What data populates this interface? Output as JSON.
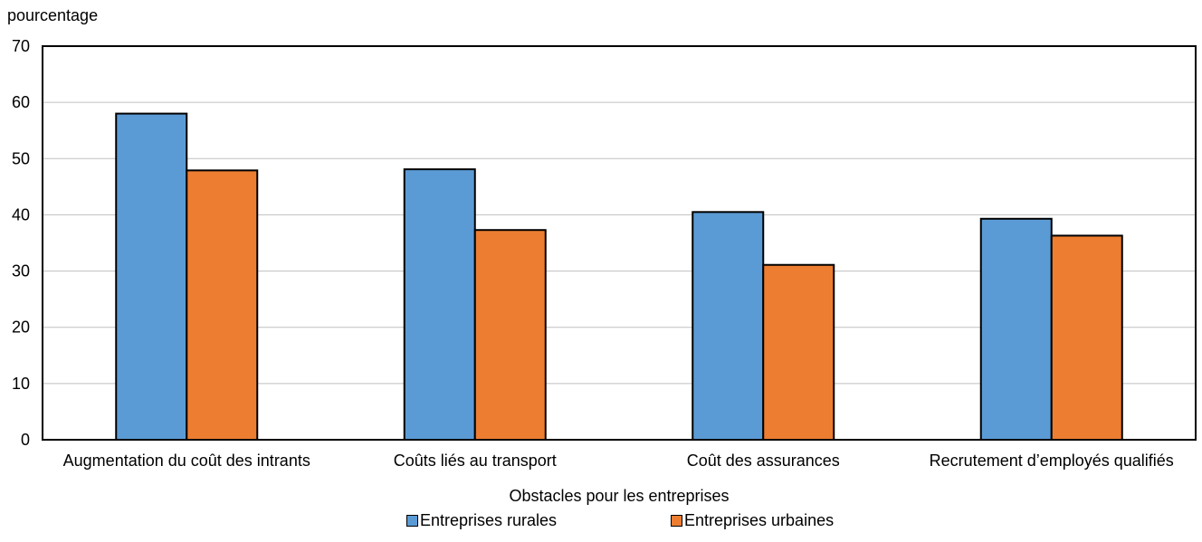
{
  "chart_data": {
    "type": "bar",
    "ylabel": "pourcentage",
    "xlabel": "Obstacles pour les entreprises",
    "ylim": [
      0,
      70
    ],
    "yticks": [
      0,
      10,
      20,
      30,
      40,
      50,
      60,
      70
    ],
    "grid": true,
    "legend_position": "bottom",
    "categories": [
      "Augmentation du coût des intrants",
      "Coûts liés au transport",
      "Coût des assurances",
      "Recrutement d’employés qualifiés"
    ],
    "series": [
      {
        "name": "Entreprises rurales",
        "color": "#5B9BD5",
        "values": [
          58,
          48.1,
          40.5,
          39.3
        ]
      },
      {
        "name": "Entreprises urbaines",
        "color": "#ED7D31",
        "values": [
          47.9,
          37.3,
          31.1,
          36.3
        ]
      }
    ]
  }
}
